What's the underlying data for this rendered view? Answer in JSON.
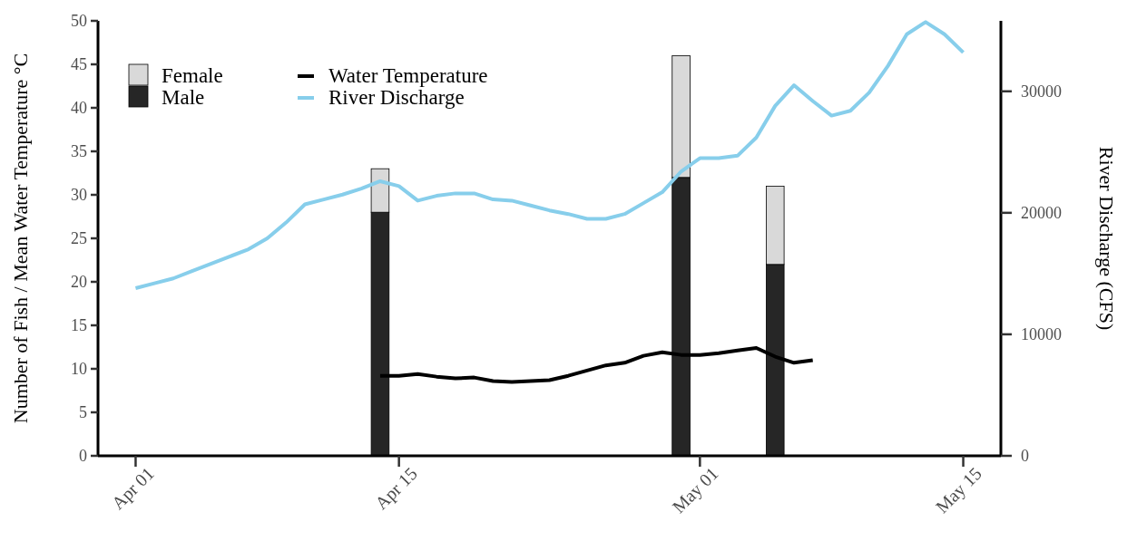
{
  "chart_data": {
    "type": "bar",
    "stacked": true,
    "ylabel": "Number of Fish / Mean Water Temperature °C",
    "y2label": "River Discharge (CFS)",
    "x": [
      "--04-14",
      "--04-30",
      "--05-05"
    ],
    "xlim": [
      "--03-30",
      "--05-17"
    ],
    "xticks": [
      {
        "value": "--04-01",
        "label": "Apr 01"
      },
      {
        "value": "--04-15",
        "label": "Apr 15"
      },
      {
        "value": "--05-01",
        "label": "May 01"
      },
      {
        "value": "--05-15",
        "label": "May 15"
      }
    ],
    "ylim": [
      0,
      50
    ],
    "yticks": [
      0,
      5,
      10,
      15,
      20,
      25,
      30,
      35,
      40,
      45,
      50
    ],
    "y2lim": [
      0,
      35800
    ],
    "y2ticks": [
      0,
      10000,
      20000,
      30000
    ],
    "legend": "top left",
    "series": [
      {
        "name": "Male",
        "color": "#262626",
        "values": [
          28,
          32,
          22
        ]
      },
      {
        "name": "Female",
        "color": "#d9d9d9",
        "values": [
          5,
          14,
          9
        ]
      },
      {
        "name": "Water Temperature",
        "type": "line",
        "color": "#000000",
        "x": [
          "--04-14",
          "--04-15",
          "--04-16",
          "--04-17",
          "--04-18",
          "--04-19",
          "--04-20",
          "--04-21",
          "--04-22",
          "--04-23",
          "--04-24",
          "--04-25",
          "--04-26",
          "--04-27",
          "--04-28",
          "--04-29",
          "--04-30",
          "--05-01",
          "--05-02",
          "--05-03",
          "--05-04",
          "--05-05",
          "--05-06",
          "--05-07"
        ],
        "values": [
          9.2,
          9.2,
          9.4,
          9.1,
          8.9,
          9.0,
          8.6,
          8.5,
          8.6,
          8.7,
          9.2,
          9.8,
          10.4,
          10.7,
          11.5,
          11.9,
          11.6,
          11.6,
          11.8,
          12.1,
          12.4,
          11.4,
          10.7,
          11.0
        ]
      },
      {
        "name": "River Discharge",
        "type": "line",
        "axis": "y2",
        "color": "#87ceeb",
        "x": [
          "--04-01",
          "--04-02",
          "--04-03",
          "--04-04",
          "--04-05",
          "--04-06",
          "--04-07",
          "--04-08",
          "--04-09",
          "--04-10",
          "--04-11",
          "--04-12",
          "--04-13",
          "--04-14",
          "--04-15",
          "--04-16",
          "--04-17",
          "--04-18",
          "--04-19",
          "--04-20",
          "--04-21",
          "--04-22",
          "--04-23",
          "--04-24",
          "--04-25",
          "--04-26",
          "--04-27",
          "--04-28",
          "--04-29",
          "--04-30",
          "--05-01",
          "--05-02",
          "--05-03",
          "--05-04",
          "--05-05",
          "--05-06",
          "--05-07",
          "--05-08",
          "--05-09",
          "--05-10",
          "--05-11",
          "--05-12",
          "--05-13",
          "--05-14",
          "--05-15"
        ],
        "values": [
          13800,
          14200,
          14600,
          15200,
          15800,
          16400,
          17000,
          17900,
          19200,
          20700,
          21100,
          21500,
          22000,
          22600,
          22200,
          21000,
          21400,
          21600,
          21600,
          21100,
          21000,
          20600,
          20200,
          19900,
          19500,
          19500,
          19900,
          20800,
          21700,
          23400,
          24500,
          24500,
          24700,
          26200,
          28800,
          30500,
          29200,
          28000,
          28400,
          29900,
          32100,
          34700,
          35700,
          34700,
          33200
        ]
      }
    ]
  }
}
